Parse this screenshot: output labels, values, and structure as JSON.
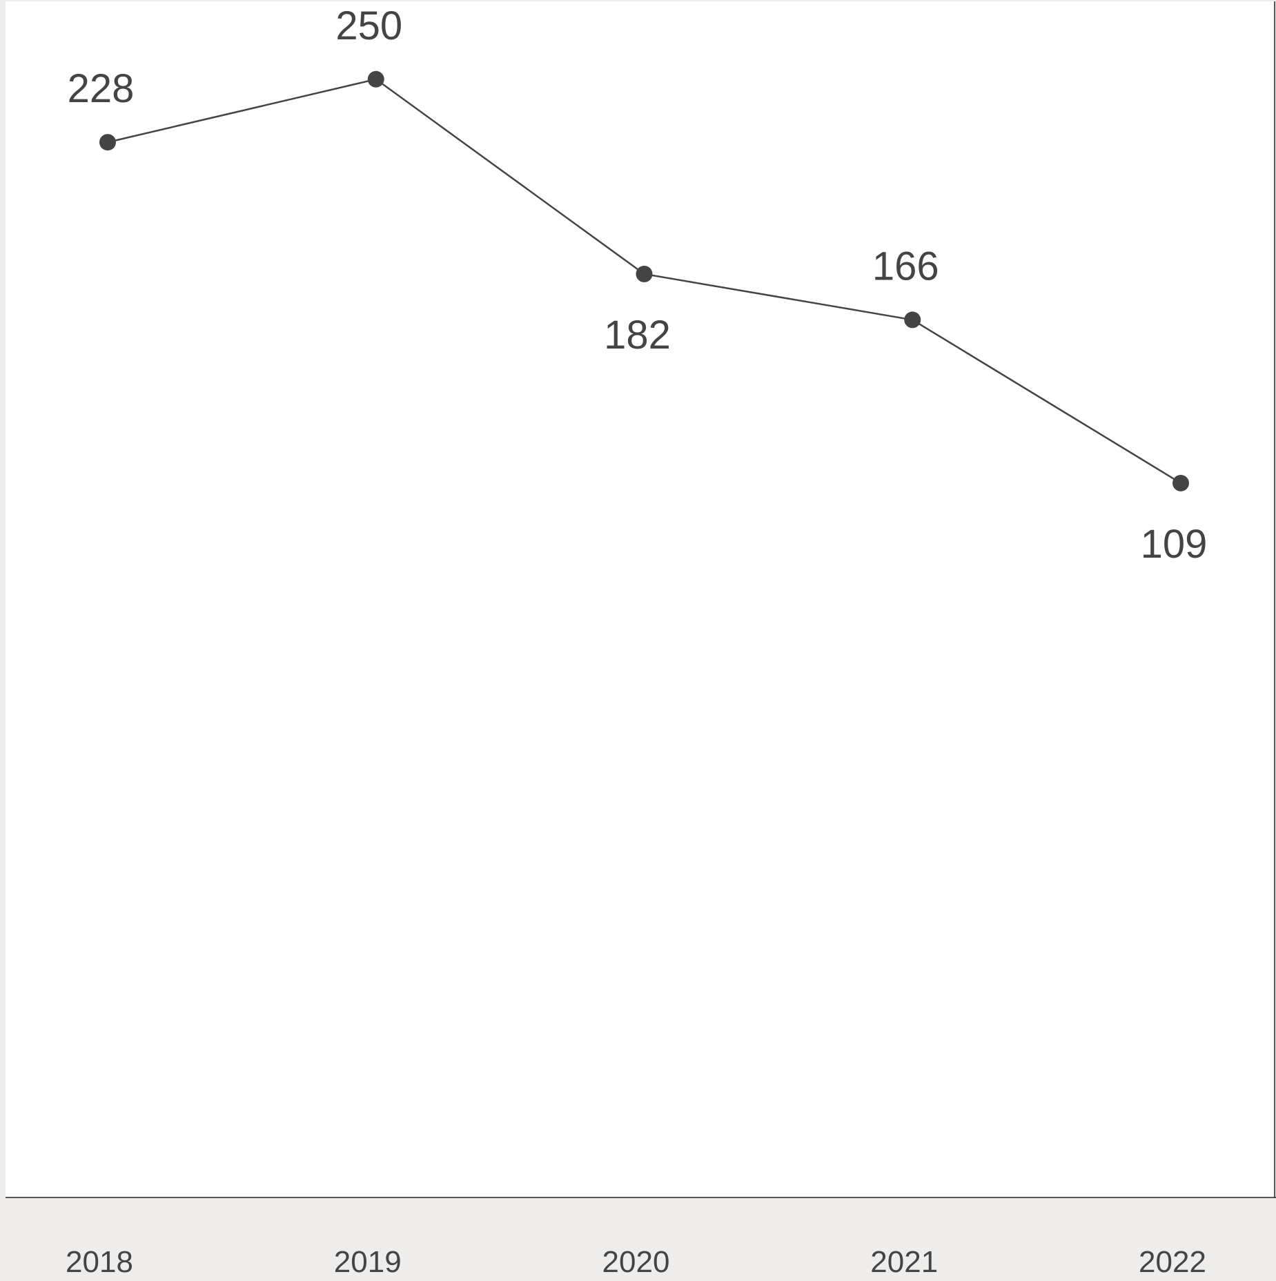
{
  "chart_data": {
    "type": "line",
    "title": "",
    "xlabel": "",
    "ylabel": "",
    "categories": [
      "2018",
      "2019",
      "2020",
      "2021",
      "2022"
    ],
    "series": [
      {
        "values": [
          228,
          250,
          182,
          166,
          109
        ],
        "labels": [
          "228",
          "250",
          "182",
          "166",
          "109"
        ],
        "label_positions": [
          "above",
          "above",
          "below",
          "above",
          "below"
        ]
      }
    ],
    "grid": false,
    "legend": "none",
    "colors": {
      "line": "#444444",
      "plot_background": "#ffffff",
      "axis_band": "#eeedeb"
    }
  }
}
